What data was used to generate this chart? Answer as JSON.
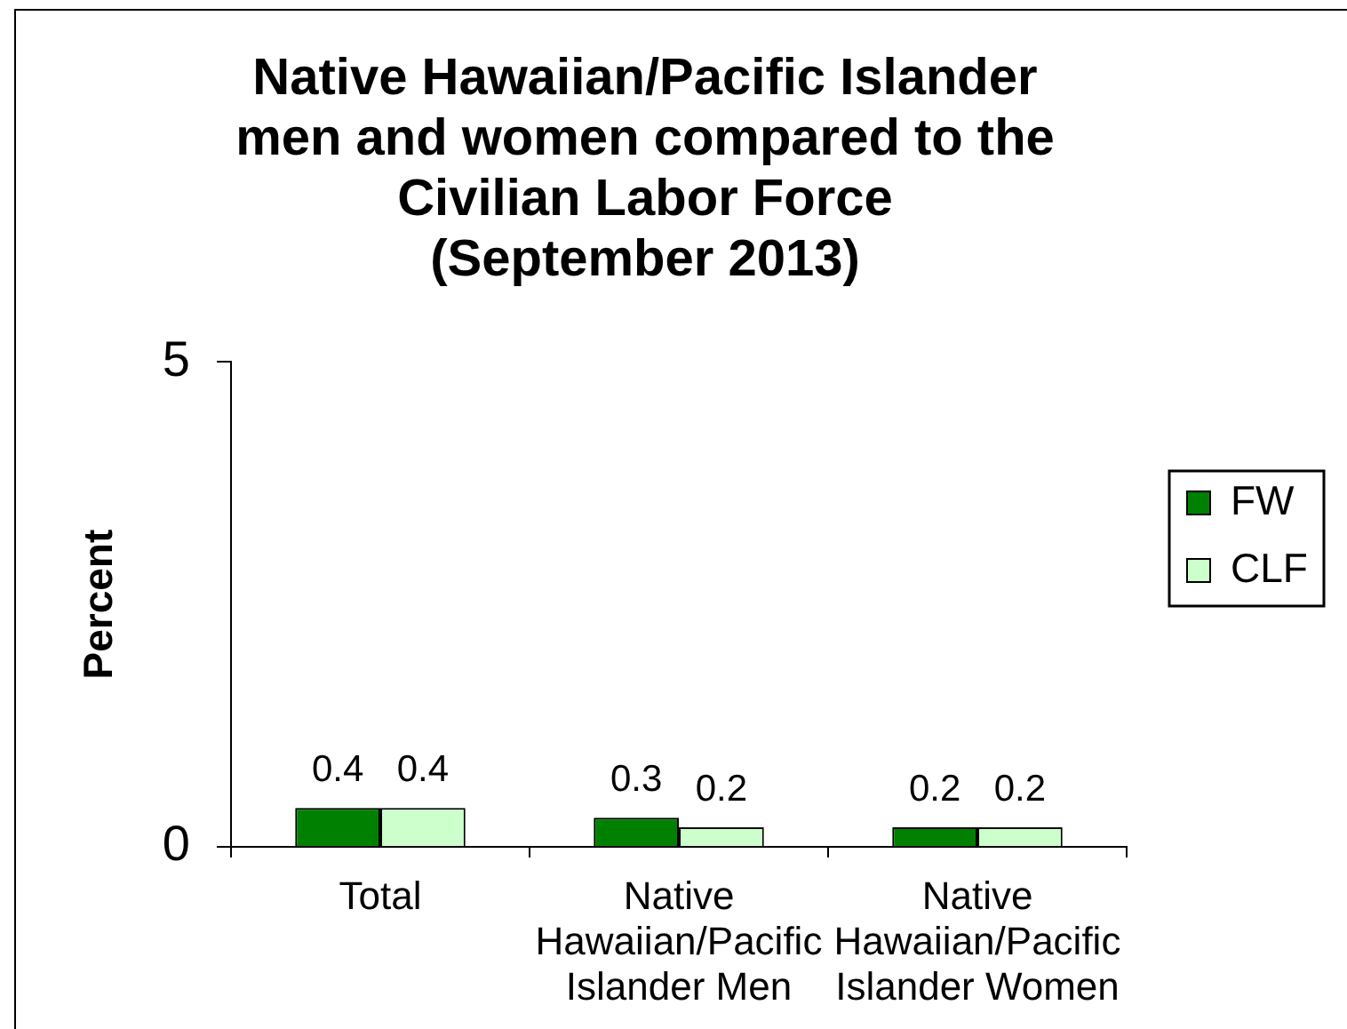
{
  "chart_data": {
    "type": "bar",
    "title": "Native Hawaiian/Pacific Islander men and women compared to the Civilian Labor Force (September 2013)",
    "ylabel": "Percent",
    "categories": [
      "Total",
      "Native Hawaiian/Pacific Islander Men",
      "Native Hawaiian/Pacific Islander Women"
    ],
    "series": [
      {
        "name": "FW",
        "color": "#008000",
        "values": [
          0.4,
          0.3,
          0.2
        ]
      },
      {
        "name": "CLF",
        "color": "#ccffcc",
        "values": [
          0.4,
          0.2,
          0.2
        ]
      }
    ],
    "ylim": [
      0,
      5
    ],
    "yticks": [
      0,
      5
    ],
    "grid": false,
    "legend": "right",
    "data_labels": true
  }
}
